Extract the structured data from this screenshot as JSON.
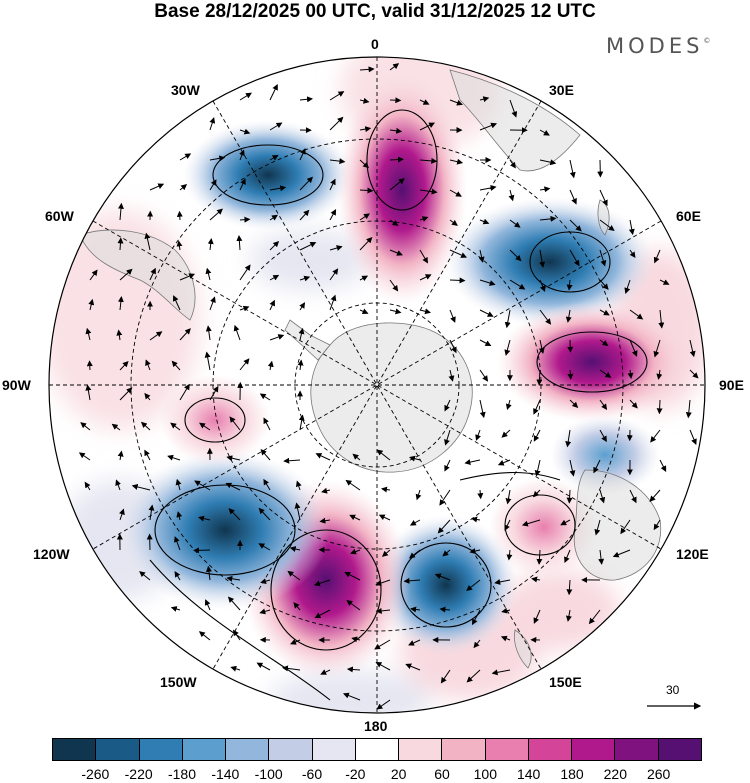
{
  "title": "Base 28/12/2025 00 UTC, valid 31/12/2025 12 UTC",
  "brand": "MODES",
  "brand_mark": "©",
  "longitude_labels": {
    "lon_0": "0",
    "lon_30e": "30E",
    "lon_60e": "60E",
    "lon_90e": "90E",
    "lon_120e": "120E",
    "lon_150e": "150E",
    "lon_180": "180",
    "lon_150w": "150W",
    "lon_120w": "120W",
    "lon_90w": "90W",
    "lon_60w": "60W",
    "lon_30w": "30W"
  },
  "reference_vector": {
    "value": "30"
  },
  "colorbar": {
    "ticks": [
      "-260",
      "-220",
      "-180",
      "-140",
      "-100",
      "-60",
      "-20",
      "20",
      "60",
      "100",
      "140",
      "180",
      "220",
      "260"
    ],
    "colors": [
      "#10354f",
      "#1a5a86",
      "#2f7db3",
      "#5c9fcf",
      "#93b7dc",
      "#c3cde6",
      "#e5e6f1",
      "#ffffff",
      "#f8d9df",
      "#f2b3c4",
      "#e87fae",
      "#d4459a",
      "#b0198c",
      "#80127f",
      "#551072"
    ]
  },
  "anomaly_centers": [
    {
      "name": "negative-anomaly-atlantic",
      "sign": "negative",
      "strength": -150
    },
    {
      "name": "positive-anomaly-south-atlantic",
      "sign": "positive",
      "strength": 250
    },
    {
      "name": "negative-anomaly-south-africa",
      "sign": "negative",
      "strength": -200
    },
    {
      "name": "positive-anomaly-indian-ocean",
      "sign": "positive",
      "strength": 230
    },
    {
      "name": "negative-anomaly-east-indian",
      "sign": "negative",
      "strength": -110
    },
    {
      "name": "positive-anomaly-australia",
      "sign": "positive",
      "strength": 120
    },
    {
      "name": "negative-anomaly-tasman",
      "sign": "negative",
      "strength": -230
    },
    {
      "name": "positive-anomaly-south-pacific",
      "sign": "positive",
      "strength": 270
    },
    {
      "name": "negative-anomaly-east-pacific",
      "sign": "negative",
      "strength": -270
    },
    {
      "name": "positive-anomaly-southeast-pacific",
      "sign": "positive",
      "strength": 130
    }
  ]
}
